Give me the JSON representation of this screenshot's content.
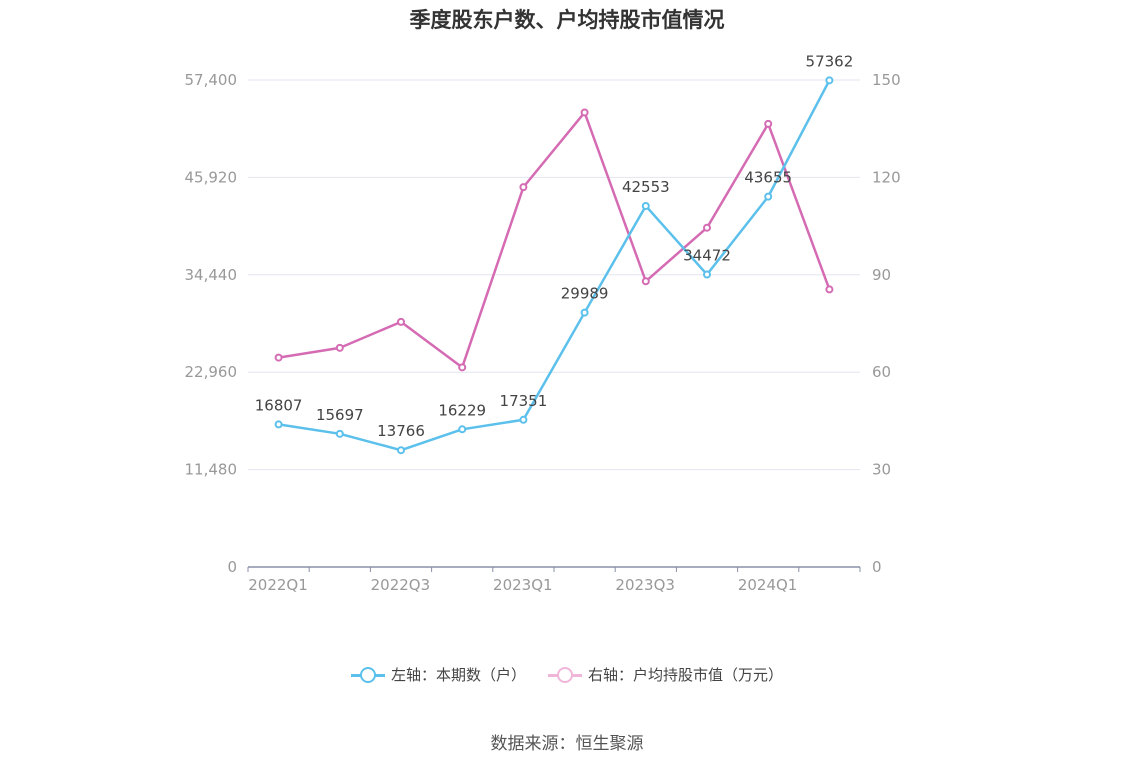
{
  "chart_data": {
    "type": "line",
    "title": "季度股东户数、户均持股市值情况",
    "source": "数据来源：恒生聚源",
    "x": [
      "2022Q1",
      "2022Q2",
      "2022Q3",
      "2022Q4",
      "2023Q1",
      "2023Q2",
      "2023Q3",
      "2023Q4",
      "2024Q1",
      "2024Q2"
    ],
    "x_tick_labels": [
      "2022Q1",
      "2022Q3",
      "2023Q1",
      "2023Q3",
      "2024Q1"
    ],
    "left_axis": {
      "ylim": [
        0,
        57400
      ],
      "ticks": [
        "0",
        "11,480",
        "22,960",
        "34,440",
        "45,920",
        "57,400"
      ]
    },
    "right_axis": {
      "ylim": [
        0,
        150
      ],
      "ticks": [
        "0",
        "30",
        "60",
        "90",
        "120",
        "150"
      ]
    },
    "grid": true,
    "legend_position": "bottom",
    "series": [
      {
        "name": "左轴：本期数（户）",
        "axis": "left",
        "color": "#5bc0eb",
        "values": [
          16807,
          15697,
          13766,
          16229,
          17351,
          29989,
          42553,
          34472,
          43655,
          57362
        ],
        "labels": [
          "16807",
          "15697",
          "13766",
          "16229",
          "17351",
          "29989",
          "42553",
          "34472",
          "43655",
          "57362"
        ]
      },
      {
        "name": "右轴：户均持股市值（万元）",
        "axis": "right",
        "color": "#d46bb3",
        "values": [
          64.5,
          67.5,
          75.5,
          61.5,
          117,
          140,
          88,
          104.5,
          136.5,
          85.5
        ]
      }
    ]
  }
}
